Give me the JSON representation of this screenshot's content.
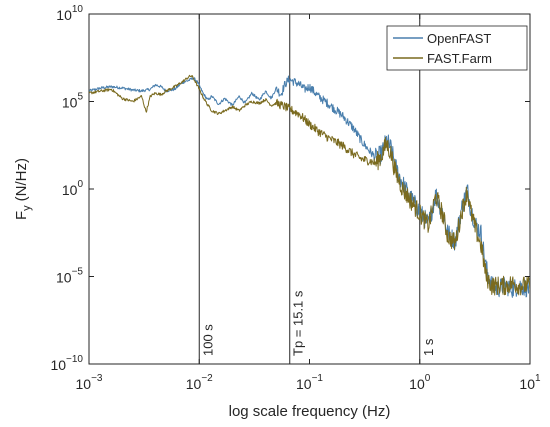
{
  "chart_data": {
    "type": "line",
    "title": "",
    "xlabel": "log scale frequency (Hz)",
    "ylabel_main": "F",
    "ylabel_sub": "y",
    "ylabel_unit": "(N/Hz)",
    "x_scale": "log",
    "y_scale": "log",
    "xlim": [
      0.001,
      10
    ],
    "ylim": [
      1e-10,
      10000000000.0
    ],
    "x_ticks": [
      {
        "value": 0.001,
        "base": "10",
        "exp": "−3"
      },
      {
        "value": 0.01,
        "base": "10",
        "exp": "−2"
      },
      {
        "value": 0.1,
        "base": "10",
        "exp": "−1"
      },
      {
        "value": 1,
        "base": "10",
        "exp": "0"
      },
      {
        "value": 10,
        "base": "10",
        "exp": "1"
      }
    ],
    "y_ticks": [
      {
        "value": 1e-10,
        "base": "10",
        "exp": "−10"
      },
      {
        "value": 1e-05,
        "base": "10",
        "exp": "−5"
      },
      {
        "value": 1,
        "base": "10",
        "exp": "0"
      },
      {
        "value": 100000.0,
        "base": "10",
        "exp": "5"
      },
      {
        "value": 10000000000.0,
        "base": "10",
        "exp": "10"
      }
    ],
    "grid": false,
    "legend_position": "top-right",
    "reference_lines": [
      {
        "x": 0.01,
        "label": "100 s"
      },
      {
        "x": 0.0662,
        "label": "Tp = 15.1 s"
      },
      {
        "x": 1,
        "label": "1 s"
      }
    ],
    "series": [
      {
        "name": "OpenFAST",
        "color": "#4A7FAD",
        "points": [
          [
            0.001,
            400000.0
          ],
          [
            0.0013,
            600000.0
          ],
          [
            0.0016,
            700000.0
          ],
          [
            0.002,
            600000.0
          ],
          [
            0.0025,
            450000.0
          ],
          [
            0.003,
            400000.0
          ],
          [
            0.0036,
            500000.0
          ],
          [
            0.004,
            900000.0
          ],
          [
            0.0045,
            700000.0
          ],
          [
            0.005,
            400000.0
          ],
          [
            0.006,
            500000.0
          ],
          [
            0.007,
            1200000.0
          ],
          [
            0.008,
            1600000.0
          ],
          [
            0.0088,
            2200000.0
          ],
          [
            0.0095,
            1500000.0
          ],
          [
            0.01,
            800000.0
          ],
          [
            0.011,
            250000.0
          ],
          [
            0.012,
            120000.0
          ],
          [
            0.013,
            200000.0
          ],
          [
            0.015,
            70000.0
          ],
          [
            0.017,
            150000.0
          ],
          [
            0.02,
            60000.0
          ],
          [
            0.023,
            200000.0
          ],
          [
            0.026,
            80000.0
          ],
          [
            0.03,
            300000.0
          ],
          [
            0.035,
            120000.0
          ],
          [
            0.04,
            400000.0
          ],
          [
            0.045,
            150000.0
          ],
          [
            0.05,
            600000.0
          ],
          [
            0.055,
            250000.0
          ],
          [
            0.06,
            1000000.0
          ],
          [
            0.065,
            1800000.0
          ],
          [
            0.07,
            1500000.0
          ],
          [
            0.08,
            1000000.0
          ],
          [
            0.09,
            500000.0
          ],
          [
            0.1,
            700000.0
          ],
          [
            0.12,
            200000.0
          ],
          [
            0.15,
            70000.0
          ],
          [
            0.2,
            15000.0
          ],
          [
            0.25,
            3000.0
          ],
          [
            0.3,
            500
          ],
          [
            0.35,
            150
          ],
          [
            0.4,
            60
          ],
          [
            0.45,
            100
          ],
          [
            0.5,
            600
          ],
          [
            0.55,
            200
          ],
          [
            0.6,
            20
          ],
          [
            0.7,
            2
          ],
          [
            0.8,
            0.4
          ],
          [
            1,
            0.05
          ],
          [
            1.2,
            0.01
          ],
          [
            1.4,
            0.5
          ],
          [
            1.6,
            0.05
          ],
          [
            1.8,
            0.003
          ],
          [
            2.1,
            0.001
          ],
          [
            2.4,
            0.08
          ],
          [
            2.7,
            0.9
          ],
          [
            2.9,
            0.08
          ],
          [
            3.2,
            0.01
          ],
          [
            3.6,
            0.003
          ],
          [
            4,
            3e-05
          ],
          [
            4.5,
            3e-06
          ],
          [
            5,
            2e-06
          ],
          [
            6,
            3e-06
          ],
          [
            7,
            2e-06
          ],
          [
            8,
            3e-06
          ],
          [
            10,
            2e-06
          ]
        ]
      },
      {
        "name": "FAST.Farm",
        "color": "#7A6A1E",
        "points": [
          [
            0.001,
            300000.0
          ],
          [
            0.0013,
            400000.0
          ],
          [
            0.0016,
            500000.0
          ],
          [
            0.002,
            150000.0
          ],
          [
            0.0025,
            100000.0
          ],
          [
            0.003,
            200000.0
          ],
          [
            0.0033,
            25000.0
          ],
          [
            0.0036,
            200000.0
          ],
          [
            0.004,
            300000.0
          ],
          [
            0.0045,
            250000.0
          ],
          [
            0.005,
            400000.0
          ],
          [
            0.006,
            700000.0
          ],
          [
            0.007,
            1300000.0
          ],
          [
            0.008,
            2500000.0
          ],
          [
            0.0085,
            3000000.0
          ],
          [
            0.009,
            1800000.0
          ],
          [
            0.01,
            500000.0
          ],
          [
            0.011,
            150000.0
          ],
          [
            0.012,
            60000.0
          ],
          [
            0.013,
            30000.0
          ],
          [
            0.015,
            20000.0
          ],
          [
            0.017,
            30000.0
          ],
          [
            0.02,
            50000.0
          ],
          [
            0.023,
            30000.0
          ],
          [
            0.026,
            60000.0
          ],
          [
            0.03,
            100000.0
          ],
          [
            0.035,
            80000.0
          ],
          [
            0.04,
            130000.0
          ],
          [
            0.045,
            60000.0
          ],
          [
            0.05,
            80000.0
          ],
          [
            0.06,
            50000.0
          ],
          [
            0.07,
            30000.0
          ],
          [
            0.08,
            20000.0
          ],
          [
            0.1,
            5000.0
          ],
          [
            0.12,
            2000.0
          ],
          [
            0.15,
            800
          ],
          [
            0.2,
            300
          ],
          [
            0.25,
            100
          ],
          [
            0.3,
            50
          ],
          [
            0.35,
            40
          ],
          [
            0.4,
            30
          ],
          [
            0.45,
            80
          ],
          [
            0.5,
            400
          ],
          [
            0.55,
            100
          ],
          [
            0.6,
            10
          ],
          [
            0.7,
            1
          ],
          [
            0.8,
            0.3
          ],
          [
            1,
            0.04
          ],
          [
            1.2,
            0.008
          ],
          [
            1.4,
            0.4
          ],
          [
            1.6,
            0.04
          ],
          [
            1.8,
            0.002
          ],
          [
            2.1,
            0.0008
          ],
          [
            2.4,
            0.05
          ],
          [
            2.7,
            0.8
          ],
          [
            2.9,
            0.05
          ],
          [
            3.2,
            0.005
          ],
          [
            3.6,
            0.0006
          ],
          [
            4,
            1e-05
          ],
          [
            4.5,
            3e-06
          ],
          [
            5,
            3e-06
          ],
          [
            6,
            3e-06
          ],
          [
            7,
            4e-06
          ],
          [
            8,
            3e-06
          ],
          [
            10,
            3e-06
          ]
        ]
      }
    ]
  }
}
